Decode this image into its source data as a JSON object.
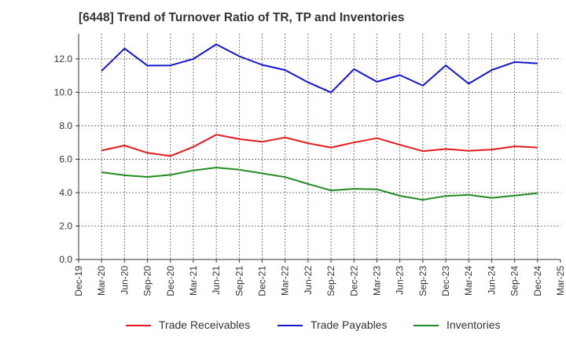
{
  "chart_data": {
    "type": "line",
    "title": "[6448]  Trend of Turnover Ratio of TR, TP and Inventories",
    "xlabel": "",
    "ylabel": "",
    "ylim": [
      0,
      13.5
    ],
    "grid": true,
    "legend_position": "bottom",
    "x_ticks": [
      "Dec-19",
      "Mar-20",
      "Jun-20",
      "Sep-20",
      "Dec-20",
      "Mar-21",
      "Jun-21",
      "Sep-21",
      "Dec-21",
      "Mar-22",
      "Jun-22",
      "Sep-22",
      "Dec-22",
      "Mar-23",
      "Jun-23",
      "Sep-23",
      "Dec-23",
      "Mar-24",
      "Jun-24",
      "Sep-24",
      "Dec-24",
      "Mar-25"
    ],
    "y_ticks": [
      "0.0",
      "2.0",
      "4.0",
      "6.0",
      "8.0",
      "10.0",
      "12.0"
    ],
    "x": [
      "Mar-20",
      "Jun-20",
      "Sep-20",
      "Dec-20",
      "Mar-21",
      "Jun-21",
      "Sep-21",
      "Dec-21",
      "Mar-22",
      "Jun-22",
      "Sep-22",
      "Dec-22",
      "Mar-23",
      "Jun-23",
      "Sep-23",
      "Dec-23",
      "Mar-24",
      "Jun-24",
      "Sep-24",
      "Dec-24"
    ],
    "series": [
      {
        "name": "Trade Receivables",
        "color": "#e41a1c",
        "values": [
          6.52,
          6.82,
          6.38,
          6.19,
          6.74,
          7.47,
          7.2,
          7.04,
          7.3,
          6.95,
          6.7,
          7.0,
          7.26,
          6.86,
          6.48,
          6.61,
          6.5,
          6.57,
          6.77,
          6.7
        ]
      },
      {
        "name": "Trade Payables",
        "color": "#1414d4",
        "values": [
          11.28,
          12.62,
          11.6,
          11.61,
          12.0,
          12.87,
          12.16,
          11.64,
          11.33,
          10.6,
          9.99,
          11.39,
          10.63,
          11.03,
          10.4,
          11.61,
          10.52,
          11.33,
          11.81,
          11.73
        ]
      },
      {
        "name": "Inventories",
        "color": "#228b22",
        "values": [
          5.22,
          5.04,
          4.94,
          5.06,
          5.33,
          5.5,
          5.37,
          5.15,
          4.93,
          4.52,
          4.13,
          4.23,
          4.2,
          3.81,
          3.57,
          3.8,
          3.87,
          3.69,
          3.82,
          3.96
        ]
      }
    ]
  }
}
